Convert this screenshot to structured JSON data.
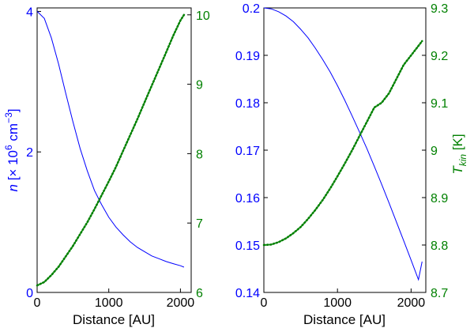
{
  "colors": {
    "left_axis": "#0000ff",
    "right_axis": "#008000",
    "frame": "#000000"
  },
  "chart_data": [
    {
      "type": "line",
      "xlabel": "Distance [AU]",
      "xlim": [
        0,
        2150
      ],
      "xticks": [
        0,
        1000,
        2000
      ],
      "grid": false,
      "y_left": {
        "label": "n [× 10^6 cm^-3]",
        "label_parts": {
          "var": "n",
          "open": " [× 10",
          "exp1": "6",
          "mid": " cm",
          "exp2": "−3",
          "close": "]"
        },
        "ylim": [
          0,
          4.05
        ],
        "ticks": [
          0,
          2,
          4
        ],
        "color": "#0000ff"
      },
      "y_right": {
        "label": "",
        "ylim": [
          6,
          10.1
        ],
        "ticks": [
          6,
          7,
          8,
          9,
          10
        ],
        "color": "#008000"
      },
      "series": [
        {
          "axis": "left",
          "style": "solid",
          "color": "#0000ff",
          "x": [
            0,
            100,
            200,
            300,
            400,
            500,
            600,
            700,
            800,
            900,
            1000,
            1100,
            1200,
            1300,
            1400,
            1500,
            1600,
            1700,
            1800,
            1900,
            2000,
            2050
          ],
          "y": [
            4.0,
            3.9,
            3.62,
            3.25,
            2.83,
            2.43,
            2.05,
            1.73,
            1.45,
            1.25,
            1.07,
            0.93,
            0.82,
            0.72,
            0.64,
            0.58,
            0.52,
            0.48,
            0.44,
            0.41,
            0.38,
            0.36
          ]
        },
        {
          "axis": "right",
          "style": "dotted",
          "color": "#008000",
          "x": [
            0,
            100,
            200,
            300,
            400,
            500,
            600,
            700,
            800,
            900,
            1000,
            1100,
            1200,
            1300,
            1400,
            1500,
            1600,
            1700,
            1800,
            1900,
            2000,
            2050
          ],
          "y": [
            6.1,
            6.15,
            6.25,
            6.37,
            6.52,
            6.67,
            6.84,
            7.01,
            7.2,
            7.4,
            7.6,
            7.81,
            8.04,
            8.27,
            8.5,
            8.74,
            8.98,
            9.22,
            9.46,
            9.7,
            9.92,
            10.0
          ]
        }
      ]
    },
    {
      "type": "line",
      "xlabel": "Distance [AU]",
      "xlim": [
        0,
        2200
      ],
      "xticks": [
        0,
        1000,
        2000
      ],
      "grid": false,
      "y_left": {
        "label": "",
        "ylim": [
          0.14,
          0.2
        ],
        "ticks": [
          "0.14",
          "0.15",
          "0.16",
          "0.17",
          "0.18",
          "0.19",
          "0.2"
        ],
        "color": "#0000ff"
      },
      "y_right": {
        "label": "T_kin [K]",
        "label_parts": {
          "base": "T",
          "sub": "kin",
          "unit": " [K]"
        },
        "ylim": [
          8.7,
          9.3
        ],
        "ticks": [
          "8.7",
          "8.8",
          "8.9",
          "9",
          "9.1",
          "9.2",
          "9.3"
        ],
        "color": "#008000"
      },
      "series": [
        {
          "axis": "left",
          "style": "solid",
          "color": "#0000ff",
          "x": [
            0,
            100,
            200,
            300,
            400,
            500,
            600,
            700,
            800,
            900,
            1000,
            1100,
            1200,
            1300,
            1400,
            1500,
            1600,
            1700,
            1800,
            1900,
            2000,
            2100,
            2150
          ],
          "y": [
            0.2,
            0.1998,
            0.1992,
            0.1983,
            0.1971,
            0.1955,
            0.1937,
            0.1915,
            0.1891,
            0.1865,
            0.1836,
            0.1805,
            0.1772,
            0.1738,
            0.1703,
            0.1666,
            0.1628,
            0.1589,
            0.1549,
            0.1509,
            0.1468,
            0.1427,
            0.1465
          ]
        },
        {
          "axis": "right",
          "style": "dotted",
          "color": "#008000",
          "x": [
            0,
            100,
            200,
            300,
            400,
            500,
            600,
            700,
            800,
            900,
            1000,
            1100,
            1200,
            1300,
            1400,
            1500,
            1600,
            1700,
            1800,
            1900,
            2000,
            2100,
            2150
          ],
          "y": [
            8.8,
            8.801,
            8.806,
            8.814,
            8.825,
            8.838,
            8.855,
            8.874,
            8.895,
            8.919,
            8.945,
            8.972,
            9.0,
            9.03,
            9.06,
            9.09,
            9.1,
            9.12,
            9.15,
            9.18,
            9.2,
            9.22,
            9.23
          ]
        }
      ]
    }
  ]
}
